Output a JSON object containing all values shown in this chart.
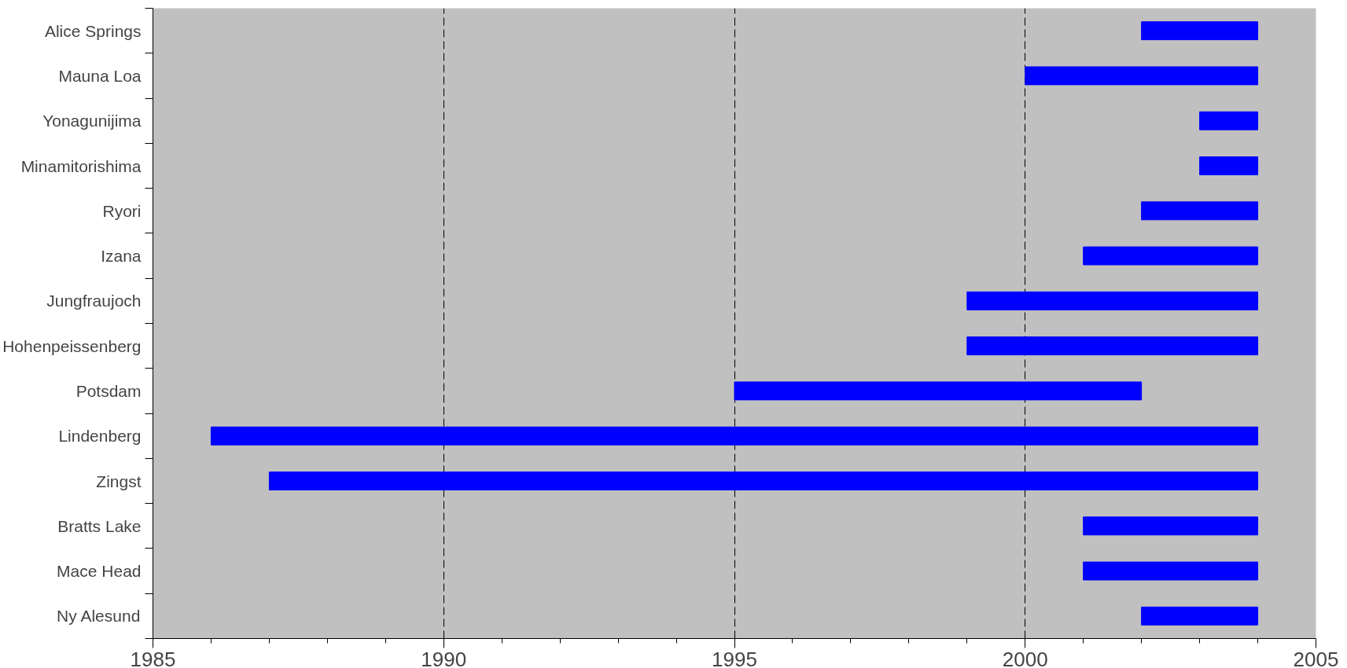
{
  "chart_data": {
    "type": "bar",
    "orientation": "horizontal",
    "categories": [
      "Alice Springs",
      "Mauna Loa",
      "Yonagunijima",
      "Minamitorishima",
      "Ryori",
      "Izana",
      "Jungfraujoch",
      "Hohenpeissenberg",
      "Potsdam",
      "Lindenberg",
      "Zingst",
      "Bratts Lake",
      "Mace Head",
      "Ny Alesund"
    ],
    "base": [
      2002,
      2000,
      2003,
      2003,
      2002,
      2001,
      1999,
      1999,
      1995,
      1986,
      1987,
      2001,
      2001,
      2002
    ],
    "values": [
      2,
      4,
      1,
      1,
      2,
      3,
      5,
      5,
      7,
      18,
      17,
      3,
      3,
      2
    ],
    "color": "#0000ff",
    "xlim": [
      1985,
      2005
    ],
    "xticks": [
      1985,
      {
        "value": 1986,
        "label": null
      },
      {
        "value": 1987,
        "label": null
      },
      {
        "value": 1988,
        "label": null
      },
      {
        "value": 1989,
        "label": null
      },
      1990,
      {
        "value": 1991,
        "label": null
      },
      {
        "value": 1992,
        "label": null
      },
      {
        "value": 1993,
        "label": null
      },
      {
        "value": 1994,
        "label": null
      },
      1995,
      {
        "value": 1996,
        "label": null
      },
      {
        "value": 1997,
        "label": null
      },
      {
        "value": 1998,
        "label": null
      },
      {
        "value": 1999,
        "label": null
      },
      2000,
      {
        "value": 2001,
        "label": null
      },
      {
        "value": 2002,
        "label": null
      },
      {
        "value": 2003,
        "label": null
      },
      {
        "value": 2004,
        "label": null
      },
      2005
    ],
    "grid": "x"
  }
}
